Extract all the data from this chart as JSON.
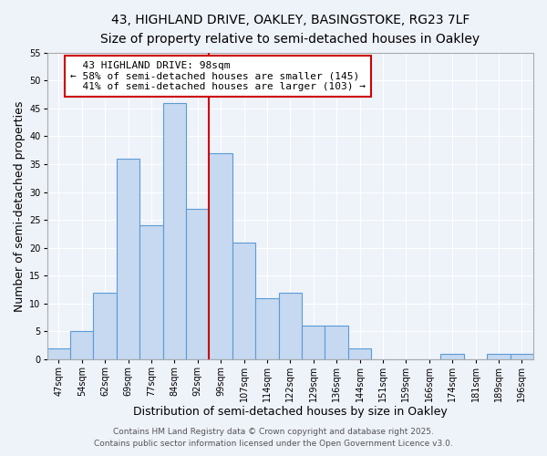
{
  "title": "43, HIGHLAND DRIVE, OAKLEY, BASINGSTOKE, RG23 7LF",
  "subtitle": "Size of property relative to semi-detached houses in Oakley",
  "xlabel": "Distribution of semi-detached houses by size in Oakley",
  "ylabel": "Number of semi-detached properties",
  "bin_labels": [
    "47sqm",
    "54sqm",
    "62sqm",
    "69sqm",
    "77sqm",
    "84sqm",
    "92sqm",
    "99sqm",
    "107sqm",
    "114sqm",
    "122sqm",
    "129sqm",
    "136sqm",
    "144sqm",
    "151sqm",
    "159sqm",
    "166sqm",
    "174sqm",
    "181sqm",
    "189sqm",
    "196sqm"
  ],
  "bar_heights": [
    2,
    5,
    12,
    36,
    24,
    46,
    27,
    37,
    21,
    11,
    12,
    6,
    6,
    2,
    0,
    0,
    0,
    1,
    0,
    1,
    1
  ],
  "bar_color": "#c6d9f0",
  "bar_edge_color": "#5b9bd5",
  "vline_x": 6.5,
  "property_line_label": "43 HIGHLAND DRIVE: 98sqm",
  "smaller_pct": "58%",
  "smaller_count": 145,
  "larger_pct": "41%",
  "larger_count": 103,
  "annotation_box_color": "#ffffff",
  "annotation_box_edge": "#cc0000",
  "vline_color": "#cc0000",
  "ylim": [
    0,
    55
  ],
  "yticks": [
    0,
    5,
    10,
    15,
    20,
    25,
    30,
    35,
    40,
    45,
    50,
    55
  ],
  "footer1": "Contains HM Land Registry data © Crown copyright and database right 2025.",
  "footer2": "Contains public sector information licensed under the Open Government Licence v3.0.",
  "bg_color": "#eef2f9",
  "grid_color": "#ffffff",
  "title_fontsize": 10,
  "subtitle_fontsize": 9,
  "axis_label_fontsize": 9,
  "tick_fontsize": 7,
  "annotation_fontsize": 8,
  "footer_fontsize": 6.5
}
